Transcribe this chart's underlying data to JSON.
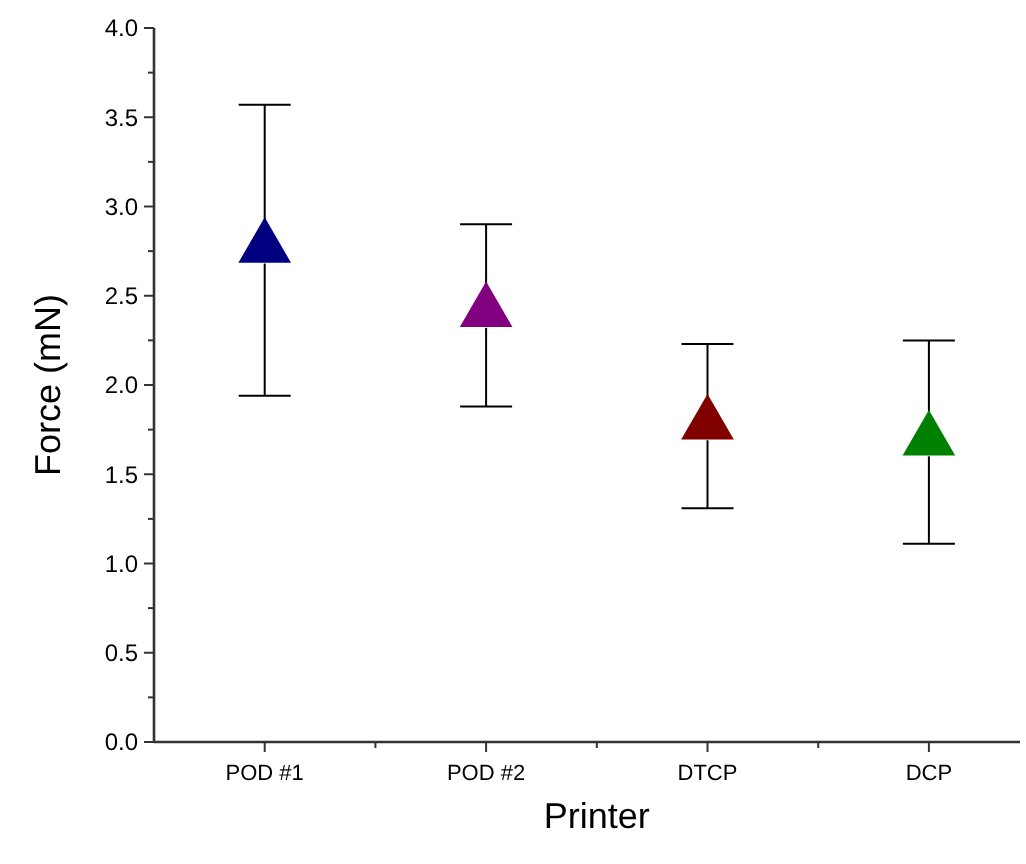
{
  "chart_data": {
    "type": "scatter",
    "xlabel": "Printer",
    "ylabel": "Force (mN)",
    "categories": [
      "POD #1",
      "POD #2",
      "DTCP",
      "DCP"
    ],
    "values": [
      2.77,
      2.41,
      1.78,
      1.69
    ],
    "colors": [
      "#000080",
      "#800080",
      "#800000",
      "#008000"
    ],
    "errors": [
      [
        1.94,
        3.57
      ],
      [
        1.88,
        2.9
      ],
      [
        1.31,
        2.23
      ],
      [
        1.11,
        2.25
      ]
    ],
    "marker": "triangle",
    "ylim": [
      0,
      4
    ],
    "yticks": [
      {
        "value": 0,
        "label": "0.0"
      },
      {
        "value": 0.25,
        "label": null
      },
      {
        "value": 0.5,
        "label": "0.5"
      },
      {
        "value": 0.75,
        "label": null
      },
      {
        "value": 1,
        "label": "1.0"
      },
      {
        "value": 1.25,
        "label": null
      },
      {
        "value": 1.5,
        "label": "1.5"
      },
      {
        "value": 1.75,
        "label": null
      },
      {
        "value": 2,
        "label": "2.0"
      },
      {
        "value": 2.25,
        "label": null
      },
      {
        "value": 2.5,
        "label": "2.5"
      },
      {
        "value": 2.75,
        "label": null
      },
      {
        "value": 3,
        "label": "3.0"
      },
      {
        "value": 3.25,
        "label": null
      },
      {
        "value": 3.5,
        "label": "3.5"
      },
      {
        "value": 3.75,
        "label": null
      },
      {
        "value": 4,
        "label": "4.0"
      }
    ]
  }
}
